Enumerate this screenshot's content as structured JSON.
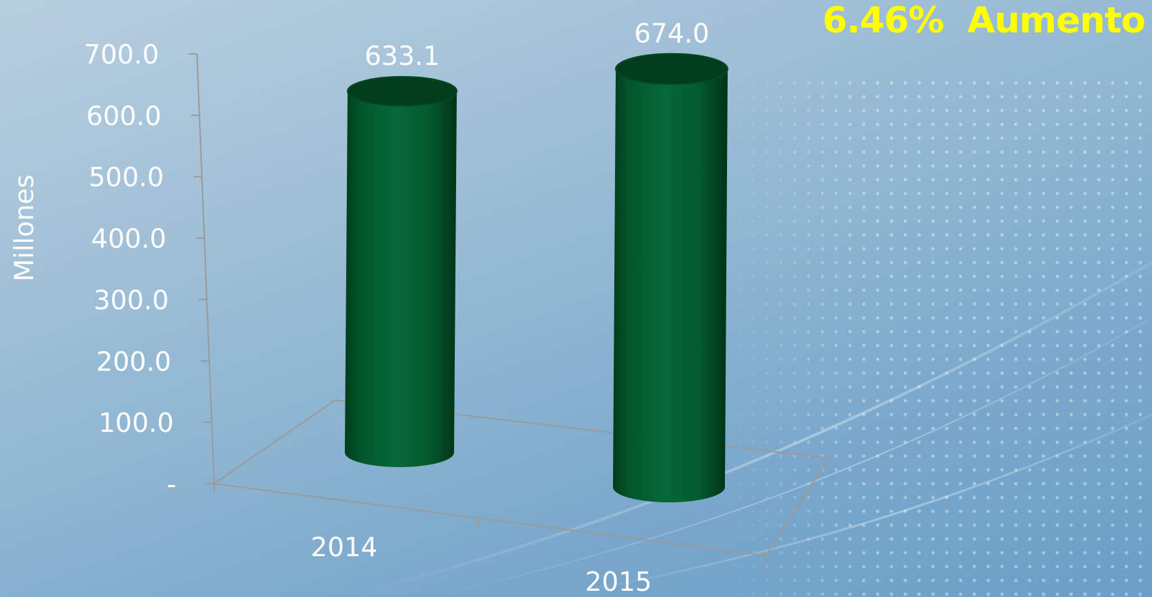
{
  "headline": "6.46%  Aumento",
  "colors": {
    "bar": "#03622f",
    "bar_dark": "#013d1c",
    "axis": "#9a9a9a",
    "text": "#ffffff",
    "headline": "#ffff00"
  },
  "chart_data": {
    "type": "bar",
    "style": "3d-cylinder",
    "categories": [
      "2014",
      "2015"
    ],
    "values": [
      633.1,
      674.0
    ],
    "data_labels": [
      "633.1",
      "674.0"
    ],
    "ylabel": "Millones",
    "ylim": [
      0,
      700
    ],
    "yticks": [
      {
        "value": 700,
        "label": "700.0"
      },
      {
        "value": 600,
        "label": "600.0"
      },
      {
        "value": 500,
        "label": "500.0"
      },
      {
        "value": 400,
        "label": "400.0"
      },
      {
        "value": 300,
        "label": "300.0"
      },
      {
        "value": 200,
        "label": "200.0"
      },
      {
        "value": 100,
        "label": "100.0"
      },
      {
        "value": 0,
        "label": "-"
      }
    ],
    "grid": false,
    "legend": "none"
  }
}
